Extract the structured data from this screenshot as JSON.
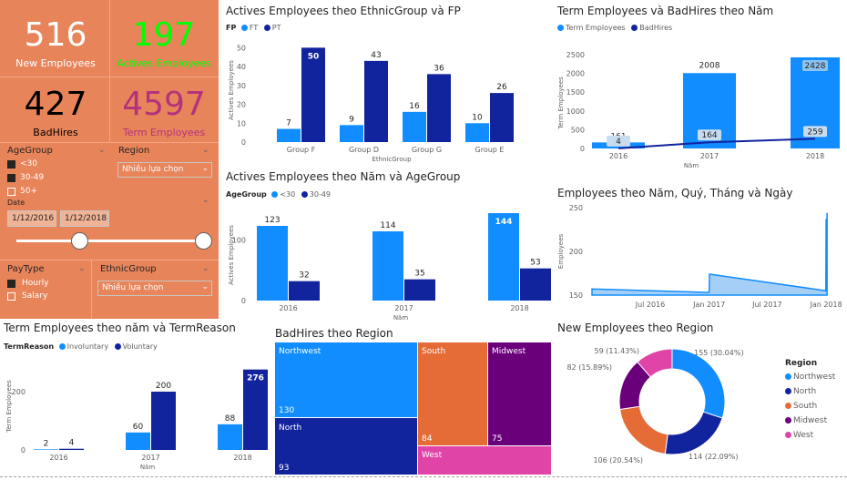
{
  "colors": {
    "light_blue": "#118dff",
    "dark_blue": "#12239e",
    "orange": "#e66c37",
    "purple": "#6b007b",
    "pink": "#e044a7",
    "panel": "#e8845a",
    "green": "#00ff00",
    "magenta": "#b4327d"
  },
  "kpis": {
    "new_employees": {
      "value": "516",
      "label": "New Employees"
    },
    "active_employees": {
      "value": "197",
      "label": "Actives Employees"
    },
    "bad_hires": {
      "value": "427",
      "label": "BadHires"
    },
    "term_employees": {
      "value": "4597",
      "label": "Term Employees"
    }
  },
  "slicers": {
    "agegroup": {
      "title": "AgeGroup",
      "items": [
        "<30",
        "30-49",
        "50+"
      ]
    },
    "region": {
      "title": "Region",
      "value": "Nhiều lựa chọn"
    },
    "date": {
      "title": "Date",
      "start": "1/12/2016",
      "end": "1/12/2018"
    },
    "paytype": {
      "title": "PayType",
      "items": [
        "Hourly",
        "Salary"
      ]
    },
    "ethnicgroup": {
      "title": "EthnicGroup",
      "value": "Nhiều lựa chọn"
    }
  },
  "charts": {
    "ethnic_fp": {
      "title": "Actives Employees theo EthnicGroup và FP",
      "legend_title": "FP",
      "ylabel": "Actives Employees",
      "xlabel": "EthnicGroup",
      "yticks": [
        "50",
        "40",
        "30",
        "20",
        "10",
        "0"
      ],
      "labels": [
        "7",
        "50",
        "9",
        "43",
        "16",
        "36",
        "10",
        "26"
      ]
    },
    "year_age": {
      "title": "Actives Employees theo Năm và AgeGroup",
      "legend_title": "AgeGroup",
      "ylabel": "Actives Employees",
      "xlabel": "Năm",
      "yticks": [
        "100",
        "0"
      ],
      "labels": [
        "123",
        "32",
        "114",
        "35",
        "144",
        "53"
      ]
    },
    "term_badhires": {
      "title": "Term Employees và BadHires theo Năm",
      "ylabel": "Term Employees",
      "xlabel": "Năm",
      "yticks": [
        "2500",
        "2000",
        "1500",
        "1000",
        "500",
        "0"
      ],
      "labels": [
        "161",
        "4",
        "2008",
        "164",
        "2428",
        "259"
      ]
    },
    "employees_date": {
      "title": "Employees theo Năm, Quý, Tháng và Ngày",
      "ylabel": "Employees",
      "yticks": [
        "250",
        "200",
        "150"
      ],
      "xticks": [
        "Jul 2016",
        "Jan 2017",
        "Jul 2017",
        "Jan 2018"
      ]
    },
    "term_reason": {
      "title": "Term Employees theo năm và TermReason",
      "legend_title": "TermReason",
      "ylabel": "Term Employees",
      "xlabel": "Năm",
      "yticks": [
        "200",
        "0"
      ],
      "labels": [
        "2",
        "4",
        "60",
        "200",
        "88",
        "276"
      ]
    },
    "badhires_region": {
      "title": "BadHires theo Region"
    },
    "new_by_region": {
      "title": "New Employees theo Region",
      "legend_title": "Region",
      "slice_labels": [
        "155 (30.04%)",
        "114 (22.09%)",
        "106 (20.54%)",
        "82 (15.89%)",
        "59 (11.43%)"
      ]
    }
  },
  "chart_data": [
    {
      "type": "bar",
      "title": "Actives Employees theo EthnicGroup và FP",
      "xlabel": "EthnicGroup",
      "ylabel": "Actives Employees",
      "categories": [
        "Group F",
        "Group D",
        "Group G",
        "Group E"
      ],
      "series": [
        {
          "name": "FT",
          "values": [
            7,
            9,
            16,
            10
          ]
        },
        {
          "name": "PT",
          "values": [
            50,
            43,
            36,
            26
          ]
        }
      ],
      "ylim": [
        0,
        55
      ]
    },
    {
      "type": "bar",
      "title": "Actives Employees theo Năm và AgeGroup",
      "xlabel": "Năm",
      "ylabel": "Actives Employees",
      "categories": [
        "2016",
        "2017",
        "2018"
      ],
      "series": [
        {
          "name": "<30",
          "values": [
            123,
            114,
            144
          ]
        },
        {
          "name": "30-49",
          "values": [
            32,
            35,
            53
          ]
        }
      ],
      "ylim": [
        0,
        150
      ]
    },
    {
      "type": "bar",
      "title": "Term Employees và BadHires theo Năm",
      "xlabel": "Năm",
      "ylabel": "Term Employees",
      "categories": [
        "2016",
        "2017",
        "2018"
      ],
      "series": [
        {
          "name": "Term Employees",
          "values": [
            161,
            2008,
            2428
          ]
        },
        {
          "name": "BadHires",
          "values": [
            4,
            164,
            259
          ]
        }
      ],
      "ylim": [
        0,
        2500
      ]
    },
    {
      "type": "area",
      "title": "Employees theo Năm, Quý, Tháng và Ngày",
      "ylabel": "Employees",
      "x": [
        "2016-01",
        "2016-12-31",
        "2017-01-01",
        "2017-01-02",
        "2017-12-31",
        "2018-01-01",
        "2018-01-02",
        "2018-01-04"
      ],
      "values": [
        157,
        153,
        156,
        174,
        155,
        237,
        200,
        244
      ],
      "ylim": [
        150,
        250
      ]
    },
    {
      "type": "bar",
      "title": "Term Employees theo năm và TermReason",
      "xlabel": "Năm",
      "ylabel": "Term Employees",
      "categories": [
        "2016",
        "2017",
        "2018"
      ],
      "series": [
        {
          "name": "Involuntary",
          "values": [
            2,
            60,
            88
          ]
        },
        {
          "name": "Voluntary",
          "values": [
            4,
            200,
            276
          ]
        }
      ],
      "ylim": [
        0,
        300
      ]
    },
    {
      "type": "table",
      "title": "BadHires theo Region",
      "categories": [
        "Northwest",
        "North",
        "South",
        "Midwest",
        "West"
      ],
      "values": [
        130,
        93,
        84,
        75,
        null
      ]
    },
    {
      "type": "pie",
      "title": "New Employees theo Region",
      "categories": [
        "Northwest",
        "North",
        "South",
        "Midwest",
        "West"
      ],
      "values": [
        155,
        114,
        106,
        82,
        59
      ],
      "percents": [
        30.04,
        22.09,
        20.54,
        15.89,
        11.43
      ]
    }
  ]
}
